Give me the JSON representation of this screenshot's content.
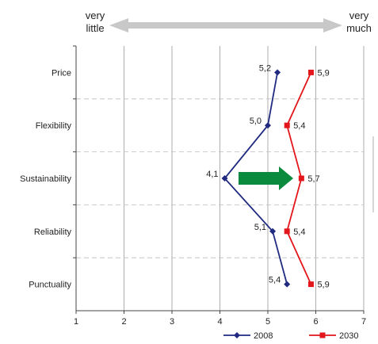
{
  "chart_data": {
    "type": "line",
    "orientation": "horizontal",
    "scale_labels": {
      "left": "very little",
      "right": "very much"
    },
    "categories": [
      "Price",
      "Flexibility",
      "Sustainability",
      "Reliability",
      "Punctuality"
    ],
    "xlim": [
      1,
      7
    ],
    "x_ticks": [
      1,
      2,
      3,
      4,
      5,
      6,
      7
    ],
    "grid": true,
    "legend_position": "bottom-right",
    "series": [
      {
        "name": "2008",
        "values": [
          5.2,
          5.0,
          4.1,
          5.1,
          5.4
        ],
        "labels": [
          "5,2",
          "5,0",
          "4,1",
          "5,1",
          "5,4"
        ],
        "color": "#1f2a80",
        "marker": "diamond"
      },
      {
        "name": "2030",
        "values": [
          5.9,
          5.4,
          5.7,
          5.4,
          5.9
        ],
        "labels": [
          "5,9",
          "5,4",
          "5,7",
          "5,4",
          "5,9"
        ],
        "color": "#e3161b",
        "marker": "square"
      }
    ],
    "annotation_arrow_color": "#0a8a3c",
    "scale_arrow_color": "#c8c8c8"
  }
}
